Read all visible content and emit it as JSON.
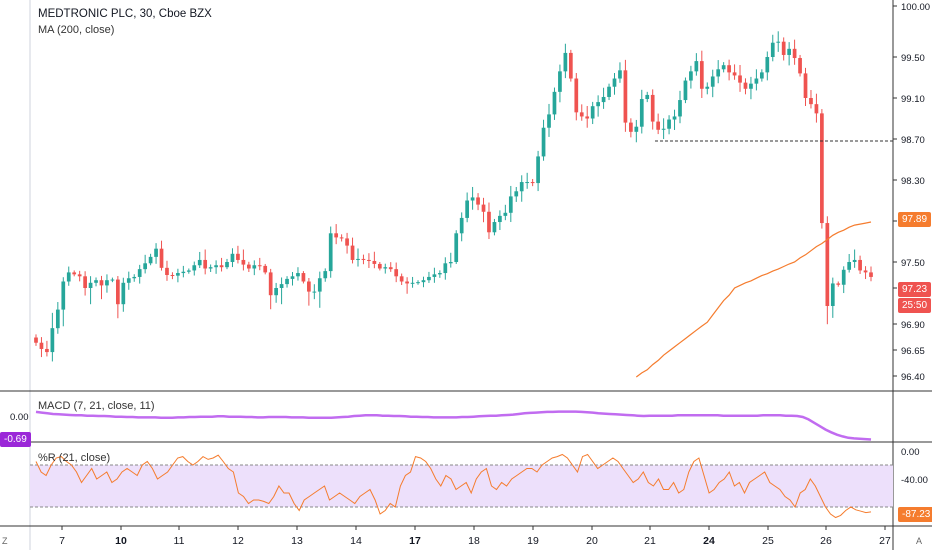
{
  "header": {
    "symbol_line": "MEDTRONIC PLC, 30, Cboe BZX",
    "ma_label": "MA (200, close)",
    "macd_label": "MACD (7, 21, close, 11)",
    "wr_label": "%R (21, close)"
  },
  "badges": {
    "ma_value": "97.89",
    "last_price": "97.23",
    "countdown": "25:50",
    "macd_value": "-0.69",
    "wr_value": "-87.23"
  },
  "corners": {
    "bottom_left": "Z",
    "bottom_right": "A"
  },
  "colors": {
    "up": "#26a69a",
    "down": "#ef5350",
    "ma": "#f57c2e",
    "macd": "#c16cf0",
    "wr_line": "#f57c2e",
    "wr_band": "#ede0fb",
    "axis_text": "#131722",
    "badge_ma": "#f57c2e",
    "badge_price": "#ef5350",
    "badge_macd": "#9b27d8",
    "badge_wr": "#f57c2e"
  },
  "chart_data": [
    {
      "type": "candlestick",
      "title": "MEDTRONIC PLC, 30, Cboe BZX",
      "x_tick_labels": [
        "7",
        "10",
        "11",
        "12",
        "13",
        "14",
        "17",
        "18",
        "19",
        "20",
        "21",
        "24",
        "25",
        "26",
        "27"
      ],
      "y_tick_labels": [
        "100.00",
        "99.50",
        "99.10",
        "98.70",
        "98.30",
        "97.90",
        "97.50",
        "97.10",
        "96.90",
        "96.65",
        "96.40"
      ],
      "ylim": [
        96.3,
        100.05
      ],
      "reference_line": 98.68,
      "closes": [
        96.72,
        96.66,
        96.63,
        96.86,
        96.98,
        97.2,
        97.34,
        97.31,
        97.28,
        97.1,
        97.18,
        97.22,
        97.14,
        97.22,
        97.23,
        97.01,
        97.18,
        97.25,
        97.27,
        97.39,
        97.48,
        97.55,
        97.63,
        97.41,
        97.3,
        97.29,
        97.33,
        97.35,
        97.37,
        97.45,
        97.52,
        97.4,
        97.42,
        97.45,
        97.42,
        97.5,
        97.58,
        97.52,
        97.46,
        97.4,
        97.45,
        97.44,
        97.34,
        97.06,
        97.1,
        97.16,
        97.24,
        97.28,
        97.33,
        97.2,
        97.08,
        97.08,
        97.25,
        97.36,
        97.78,
        97.74,
        97.73,
        97.66,
        97.52,
        97.53,
        97.52,
        97.51,
        97.47,
        97.4,
        97.42,
        97.39,
        97.28,
        97.2,
        97.17,
        97.18,
        97.19,
        97.22,
        97.27,
        97.31,
        97.33,
        97.48,
        97.5,
        97.78,
        97.93,
        98.1,
        98.13,
        98.06,
        97.99,
        97.79,
        97.89,
        97.95,
        97.98,
        98.14,
        98.19,
        98.28,
        98.28,
        98.27,
        98.53,
        98.81,
        98.94,
        99.16,
        99.36,
        99.54,
        99.29,
        98.96,
        98.92,
        98.9,
        99.02,
        99.06,
        99.11,
        99.21,
        99.29,
        99.37,
        98.86,
        98.77,
        98.82,
        99.09,
        99.13,
        98.87,
        98.79,
        98.8,
        98.89,
        98.92,
        99.08,
        99.27,
        99.36,
        99.46,
        99.19,
        99.21,
        99.31,
        99.38,
        99.42,
        99.35,
        99.32,
        99.25,
        99.19,
        99.24,
        99.29,
        99.35,
        99.5,
        99.64,
        99.65,
        99.52,
        99.58,
        99.49,
        99.34,
        99.1,
        99.04,
        98.95,
        97.88,
        97.0,
        97.17,
        97.15,
        97.38,
        97.5,
        97.52,
        97.37,
        97.34,
        97.27
      ],
      "ma_200_visible": [
        96.39,
        96.43,
        96.46,
        96.51,
        96.55,
        96.6,
        96.64,
        96.68,
        96.72,
        96.76,
        96.8,
        96.84,
        96.88,
        96.91,
        96.95,
        96.99,
        97.03,
        97.06,
        97.1,
        97.14,
        97.18,
        97.21,
        97.25,
        97.29,
        97.32,
        97.36,
        97.39,
        97.43,
        97.47,
        97.5,
        97.54,
        97.57,
        97.61,
        97.65,
        97.68,
        97.72,
        97.76,
        97.79,
        97.81,
        97.84,
        97.86,
        97.87,
        97.88,
        97.89
      ]
    },
    {
      "type": "line",
      "title": "MACD (7, 21, close, 11)",
      "y_tick_labels": [
        "0.00"
      ],
      "ylim": [
        -0.8,
        0.5
      ],
      "values": [
        0.12,
        0.1,
        0.08,
        0.06,
        0.05,
        0.04,
        0.03,
        0.02,
        0.02,
        0.01,
        0.01,
        0.0,
        0.0,
        -0.01,
        -0.02,
        -0.02,
        -0.03,
        -0.03,
        -0.04,
        -0.04,
        -0.04,
        -0.04,
        -0.05,
        -0.05,
        -0.05,
        -0.04,
        -0.04,
        -0.03,
        -0.03,
        -0.02,
        -0.02,
        -0.02,
        -0.01,
        -0.01,
        -0.02,
        -0.02,
        -0.02,
        -0.03,
        -0.03,
        -0.04,
        -0.04,
        -0.03,
        -0.03,
        -0.03,
        -0.03,
        -0.04,
        -0.04,
        -0.04,
        -0.05,
        -0.05,
        -0.05,
        -0.05,
        -0.05,
        -0.04,
        -0.03,
        -0.02,
        0.0,
        0.01,
        0.02,
        0.02,
        0.02,
        0.01,
        0.01,
        0.0,
        0.0,
        -0.01,
        -0.02,
        -0.02,
        -0.03,
        -0.03,
        -0.04,
        -0.04,
        -0.04,
        -0.04,
        -0.04,
        -0.03,
        -0.03,
        -0.02,
        -0.01,
        0.0,
        0.01,
        0.01,
        0.02,
        0.03,
        0.04,
        0.06,
        0.08,
        0.09,
        0.1,
        0.11,
        0.12,
        0.12,
        0.13,
        0.13,
        0.13,
        0.13,
        0.12,
        0.11,
        0.1,
        0.08,
        0.07,
        0.06,
        0.05,
        0.04,
        0.03,
        0.02,
        0.01,
        0.0,
        0.01,
        0.01,
        0.01,
        0.01,
        0.01,
        0.02,
        0.02,
        0.02,
        0.02,
        0.02,
        0.02,
        0.02,
        0.02,
        0.01,
        0.01,
        0.01,
        0.01,
        0.01,
        0.01,
        0.01,
        0.02,
        0.02,
        0.02,
        0.02,
        0.01,
        0.01,
        0.0,
        -0.03,
        -0.1,
        -0.2,
        -0.3,
        -0.4,
        -0.48,
        -0.55,
        -0.6,
        -0.64,
        -0.66,
        -0.67,
        -0.68,
        -0.69
      ]
    },
    {
      "type": "line",
      "title": "%R (21, close)",
      "y_tick_labels": [
        "0.00",
        "-40.00"
      ],
      "ylim": [
        -100,
        0
      ],
      "band": [
        -80,
        -20
      ],
      "values": [
        -15,
        -30,
        -35,
        -20,
        -10,
        -8,
        -15,
        -20,
        -30,
        -45,
        -35,
        -25,
        -40,
        -35,
        -30,
        -45,
        -40,
        -30,
        -25,
        -30,
        -35,
        -20,
        -15,
        -25,
        -40,
        -35,
        -30,
        -20,
        -10,
        -8,
        -15,
        -20,
        -15,
        -8,
        -12,
        -10,
        -6,
        -15,
        -25,
        -30,
        -60,
        -65,
        -75,
        -70,
        -70,
        -72,
        -75,
        -65,
        -50,
        -60,
        -60,
        -75,
        -85,
        -70,
        -65,
        -60,
        -55,
        -50,
        -70,
        -65,
        -60,
        -65,
        -70,
        -75,
        -65,
        -60,
        -55,
        -70,
        -90,
        -85,
        -75,
        -80,
        -50,
        -35,
        -30,
        -8,
        -10,
        -15,
        -25,
        -40,
        -50,
        -35,
        -40,
        -55,
        -50,
        -45,
        -60,
        -40,
        -30,
        -25,
        -50,
        -55,
        -45,
        -50,
        -40,
        -35,
        -30,
        -25,
        -25,
        -30,
        -20,
        -15,
        -10,
        -8,
        -5,
        -10,
        -20,
        -30,
        -8,
        -5,
        -15,
        -25,
        -20,
        -15,
        -10,
        -15,
        -25,
        -35,
        -45,
        -40,
        -30,
        -45,
        -50,
        -40,
        -55,
        -55,
        -45,
        -60,
        -55,
        -30,
        -15,
        -10,
        -35,
        -60,
        -55,
        -45,
        -40,
        -30,
        -50,
        -45,
        -60,
        -45,
        -40,
        -35,
        -30,
        -45,
        -50,
        -55,
        -65,
        -70,
        -80,
        -60,
        -55,
        -40,
        -50,
        -65,
        -80,
        -90,
        -95,
        -92,
        -85,
        -80,
        -84,
        -86,
        -88,
        -87
      ]
    }
  ]
}
